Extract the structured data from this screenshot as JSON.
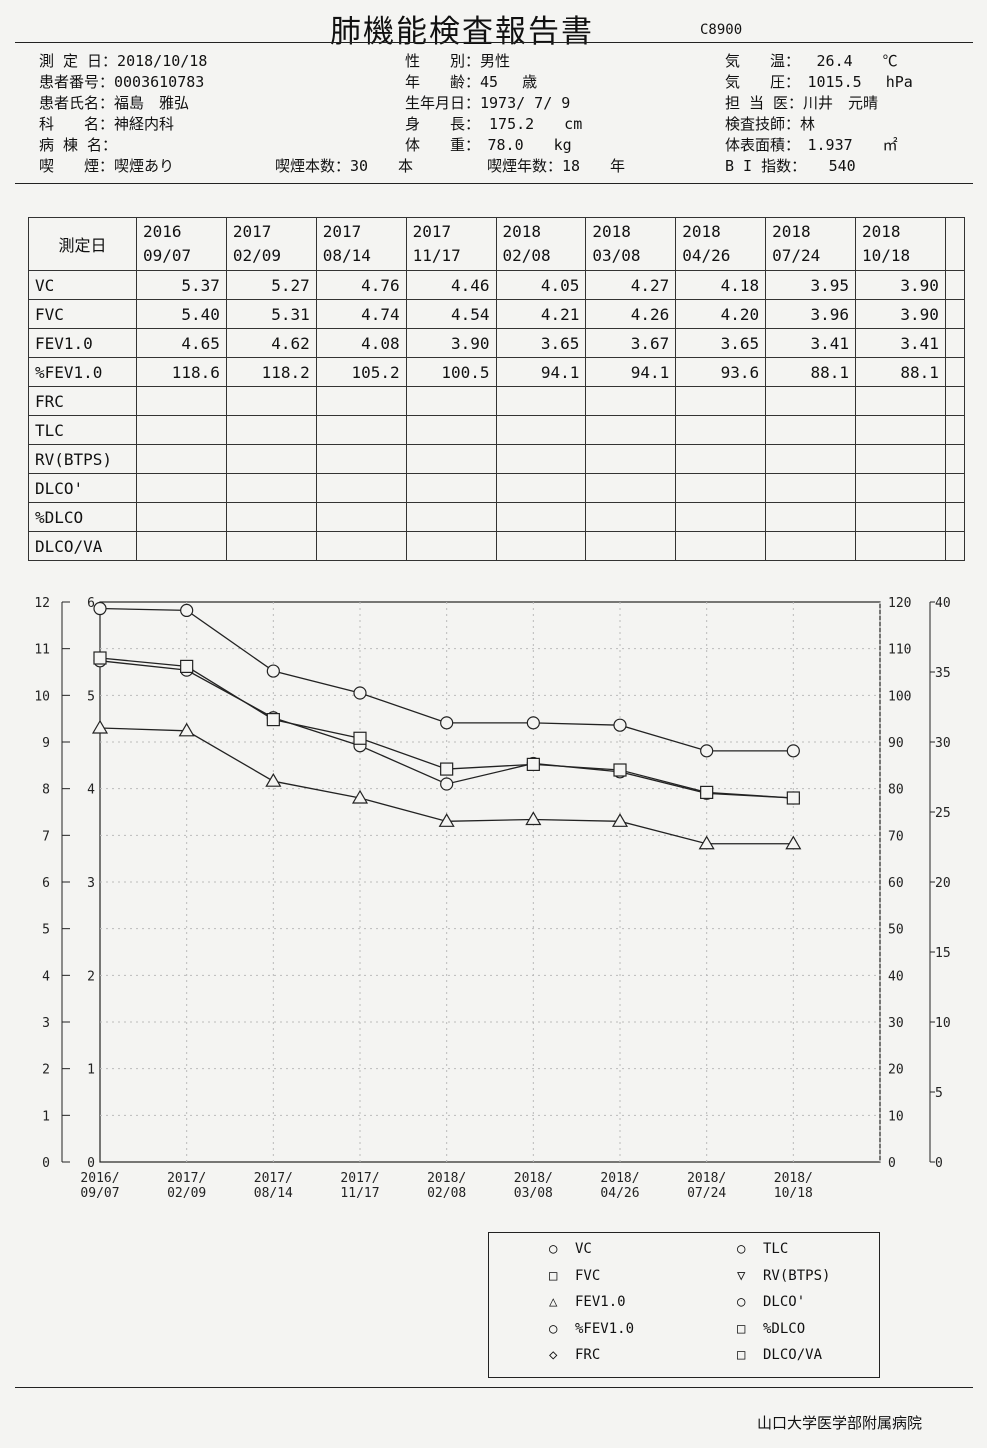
{
  "title": "肺機能検査報告書",
  "form_code": "C8900",
  "patient": {
    "left": [
      "測 定 日：2018/10/18",
      "患者番号：0003610783",
      "患者氏名：福島　雅弘",
      "科　　名：神経内科",
      "病 棟 名：",
      "喫　　煙：喫煙あり"
    ],
    "mid": [
      "性　　別：男性",
      "年　　齢：45　 歳",
      "生年月日：1973/ 7/ 9",
      "身　　長： 175.2　　cm",
      "体　　重：　78.0　　kg"
    ],
    "smoking_count": "喫煙本数：30　　本",
    "smoking_years": "喫煙年数：18　　年",
    "right": [
      "気　　温：　 26.4　　℃",
      "気　　圧：　1015.5　 hPa",
      "担 当 医：川井　元晴",
      "検査技師：林",
      "体表面積：　1.937　　㎡",
      "B I 指数：　　540"
    ]
  },
  "results": {
    "header_label": "測定日",
    "dates": [
      [
        "2016",
        "09/07"
      ],
      [
        "2017",
        "02/09"
      ],
      [
        "2017",
        "08/14"
      ],
      [
        "2017",
        "11/17"
      ],
      [
        "2018",
        "02/08"
      ],
      [
        "2018",
        "03/08"
      ],
      [
        "2018",
        "04/26"
      ],
      [
        "2018",
        "07/24"
      ],
      [
        "2018",
        "10/18"
      ]
    ],
    "rows": [
      {
        "label": "VC",
        "values": [
          "5.37",
          "5.27",
          "4.76",
          "4.46",
          "4.05",
          "4.27",
          "4.18",
          "3.95",
          "3.90"
        ]
      },
      {
        "label": "FVC",
        "values": [
          "5.40",
          "5.31",
          "4.74",
          "4.54",
          "4.21",
          "4.26",
          "4.20",
          "3.96",
          "3.90"
        ]
      },
      {
        "label": "FEV1.0",
        "values": [
          "4.65",
          "4.62",
          "4.08",
          "3.90",
          "3.65",
          "3.67",
          "3.65",
          "3.41",
          "3.41"
        ]
      },
      {
        "label": "%FEV1.0",
        "values": [
          "118.6",
          "118.2",
          "105.2",
          "100.5",
          "94.1",
          "94.1",
          "93.6",
          "88.1",
          "88.1"
        ]
      },
      {
        "label": "FRC",
        "values": [
          "",
          "",
          "",
          "",
          "",
          "",
          "",
          "",
          ""
        ]
      },
      {
        "label": "TLC",
        "values": [
          "",
          "",
          "",
          "",
          "",
          "",
          "",
          "",
          ""
        ]
      },
      {
        "label": "RV(BTPS)",
        "values": [
          "",
          "",
          "",
          "",
          "",
          "",
          "",
          "",
          ""
        ]
      },
      {
        "label": "DLCO'",
        "values": [
          "",
          "",
          "",
          "",
          "",
          "",
          "",
          "",
          ""
        ]
      },
      {
        "label": "%DLCO",
        "values": [
          "",
          "",
          "",
          "",
          "",
          "",
          "",
          "",
          ""
        ]
      },
      {
        "label": "DLCO/VA",
        "values": [
          "",
          "",
          "",
          "",
          "",
          "",
          "",
          "",
          ""
        ]
      }
    ]
  },
  "chart_data": {
    "type": "line",
    "x": [
      "2016/09/07",
      "2017/02/09",
      "2017/08/14",
      "2017/11/17",
      "2018/02/08",
      "2018/03/08",
      "2018/04/26",
      "2018/07/24",
      "2018/10/18"
    ],
    "x_tick_labels": [
      [
        "2016/",
        "09/07"
      ],
      [
        "2017/",
        "02/09"
      ],
      [
        "2017/",
        "08/14"
      ],
      [
        "2017/",
        "11/17"
      ],
      [
        "2018/",
        "02/08"
      ],
      [
        "2018/",
        "03/08"
      ],
      [
        "2018/",
        "04/26"
      ],
      [
        "2018/",
        "07/24"
      ],
      [
        "2018/",
        "10/18"
      ]
    ],
    "axes": {
      "left_outer": {
        "ticks": [
          "0",
          "1",
          "2",
          "3",
          "4",
          "5",
          "6",
          "7",
          "8",
          "9",
          "10",
          "11",
          "12"
        ],
        "range": [
          0,
          12
        ]
      },
      "left_inner": {
        "ticks": [
          "0",
          "1",
          "2",
          "3",
          "4",
          "5",
          "6"
        ],
        "range": [
          0,
          6
        ]
      },
      "right_inner": {
        "ticks": [
          "0",
          "10",
          "20",
          "30",
          "40",
          "50",
          "60",
          "70",
          "80",
          "90",
          "100",
          "110",
          "120"
        ],
        "range": [
          0,
          120
        ]
      },
      "right_outer": {
        "ticks": [
          "0",
          "5",
          "10",
          "15",
          "20",
          "25",
          "30",
          "35",
          "40"
        ],
        "range": [
          0,
          40
        ]
      }
    },
    "series": [
      {
        "name": "VC",
        "marker": "circle",
        "axis": "left_inner",
        "values": [
          5.37,
          5.27,
          4.76,
          4.46,
          4.05,
          4.27,
          4.18,
          3.95,
          3.9
        ]
      },
      {
        "name": "FVC",
        "marker": "square",
        "axis": "left_inner",
        "values": [
          5.4,
          5.31,
          4.74,
          4.54,
          4.21,
          4.26,
          4.2,
          3.96,
          3.9
        ]
      },
      {
        "name": "FEV1.0",
        "marker": "triangle",
        "axis": "left_inner",
        "values": [
          4.65,
          4.62,
          4.08,
          3.9,
          3.65,
          3.67,
          3.65,
          3.41,
          3.41
        ]
      },
      {
        "name": "%FEV1.0",
        "marker": "circle",
        "axis": "right_inner",
        "values": [
          118.6,
          118.2,
          105.2,
          100.5,
          94.1,
          94.1,
          93.6,
          88.1,
          88.1
        ]
      }
    ],
    "grid": true
  },
  "legend": {
    "left": [
      {
        "sym": "○",
        "label": "VC"
      },
      {
        "sym": "□",
        "label": "FVC"
      },
      {
        "sym": "△",
        "label": "FEV1.0"
      },
      {
        "sym": "○",
        "label": "%FEV1.0"
      },
      {
        "sym": "◇",
        "label": "FRC"
      }
    ],
    "right": [
      {
        "sym": "○",
        "label": "TLC"
      },
      {
        "sym": "▽",
        "label": "RV(BTPS)"
      },
      {
        "sym": "○",
        "label": "DLCO'"
      },
      {
        "sym": "□",
        "label": "%DLCO"
      },
      {
        "sym": "□",
        "label": "DLCO/VA"
      }
    ]
  },
  "hospital": "山口大学医学部附属病院"
}
